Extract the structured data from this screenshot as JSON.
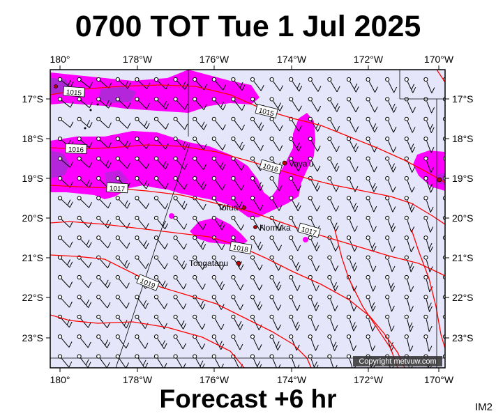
{
  "title": "0700 TOT Tue 1 Jul 2025",
  "footer": "Forecast +6 hr",
  "image_id": "IM2",
  "copyright": "Copyright metvuw.com",
  "colors": {
    "ocean": "#e6e6fa",
    "rain_light": "#ff00ff",
    "rain_heavy": "#9933cc",
    "isobar": "#ff0000",
    "frame": "#000000"
  },
  "lon_labels_top": [
    "180°",
    "178°W",
    "176°W",
    "174°W",
    "172°W",
    "170°W"
  ],
  "lon_labels_bottom": [
    "180°",
    "178°W",
    "176°W",
    "174°W",
    "172°W",
    "170°W"
  ],
  "lat_labels_left": [
    "17°S",
    "18°S",
    "19°S",
    "20°S",
    "21°S",
    "22°S",
    "23°S"
  ],
  "lat_labels_right": [
    "17°S",
    "18°S",
    "19°S",
    "20°S",
    "21°S",
    "22°S",
    "23°S"
  ],
  "places": [
    {
      "name": "Vava'u"
    },
    {
      "name": "Tofua"
    },
    {
      "name": "Nomuka"
    },
    {
      "name": "Tongatapu"
    }
  ],
  "isobar_labels": [
    "1015",
    "1015",
    "1016",
    "1016",
    "1017",
    "1017",
    "1018",
    "1019"
  ]
}
